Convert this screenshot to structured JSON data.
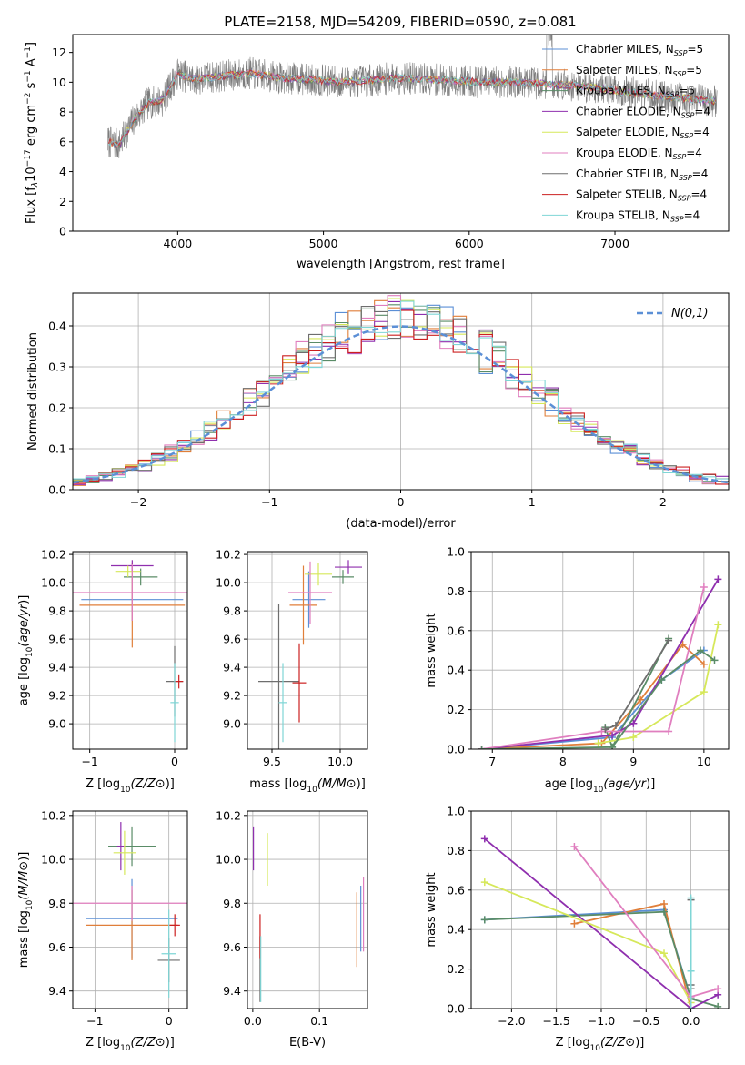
{
  "title": "PLATE=2158, MJD=54209, FIBERID=0590, z=0.081",
  "colors": {
    "series": [
      "#5b8fd6",
      "#e07f3a",
      "#5a8c67",
      "#8f2fae",
      "#d6e85a",
      "#e07fbf",
      "#6e6e6e",
      "#cc2020",
      "#7fd6d6"
    ],
    "grid": "#b0b0b0"
  },
  "chart_data": [
    {
      "id": "spectrum",
      "type": "line",
      "xlabel": "wavelength [Angstrom, rest frame]",
      "ylabel_parts": [
        "Flux [f",
        "λ",
        "10",
        "−17",
        " erg cm",
        "−2",
        " s",
        "−1",
        " A",
        "−1",
        "]"
      ],
      "xlim": [
        3280,
        7780
      ],
      "ylim": [
        0,
        13.2
      ],
      "xticks": [
        4000,
        5000,
        6000,
        7000,
        8000
      ],
      "yticks": [
        0,
        2,
        4,
        6,
        8,
        10,
        12
      ],
      "legend_position": "upper right",
      "legend": [
        {
          "name": "Chabrier MILES",
          "sub": "SSP",
          "n": "5"
        },
        {
          "name": "Salpeter MILES",
          "sub": "SSP",
          "n": "5"
        },
        {
          "name": "Kroupa MILES",
          "sub": "SSP",
          "n": "5"
        },
        {
          "name": "Chabrier ELODIE",
          "sub": "SSP",
          "n": "4"
        },
        {
          "name": "Salpeter ELODIE",
          "sub": "SSP",
          "n": "4"
        },
        {
          "name": "Kroupa ELODIE",
          "sub": "SSP",
          "n": "4"
        },
        {
          "name": "Chabrier STELIB",
          "sub": "SSP",
          "n": "4"
        },
        {
          "name": "Salpeter STELIB",
          "sub": "SSP",
          "n": "4"
        },
        {
          "name": "Kroupa STELIB",
          "sub": "SSP",
          "n": "4"
        }
      ],
      "data_trend": {
        "x": [
          3520,
          3600,
          3700,
          3800,
          3900,
          4000,
          4100,
          4300,
          4500,
          4700,
          4900,
          5100,
          5300,
          5500,
          5700,
          5900,
          6100,
          6300,
          6500,
          6700,
          6900,
          7100,
          7300,
          7500,
          7700
        ],
        "y": [
          6.0,
          5.8,
          7.5,
          8.6,
          8.8,
          10.6,
          10.2,
          10.4,
          10.6,
          10.3,
          10.2,
          10.0,
          10.1,
          10.3,
          10.2,
          10.1,
          10.0,
          10.0,
          9.9,
          9.8,
          9.6,
          9.3,
          9.1,
          8.9,
          8.7
        ]
      }
    },
    {
      "id": "residuals",
      "type": "histogram",
      "xlabel": "(data-model)/error",
      "ylabel": "Normed distribution",
      "xlim": [
        -2.5,
        2.5
      ],
      "ylim": [
        0,
        0.48
      ],
      "xticks": [
        -2,
        -1,
        0,
        1,
        2
      ],
      "yticks": [
        0.0,
        0.1,
        0.2,
        0.3,
        0.4
      ],
      "bin_width": 0.1,
      "legend_label": "N(0,1)",
      "legend_position": "upper right",
      "reference_curve": {
        "type": "gaussian",
        "mean": 0,
        "sigma": 1
      }
    },
    {
      "id": "age-vs-Z",
      "type": "errorbar",
      "xlabel": "Z [log10(Z/Z⊙)]",
      "ylabel": "age  [log10(age/yr)]",
      "xlim": [
        -1.2,
        0.15
      ],
      "ylim": [
        8.82,
        10.22
      ],
      "xticks": [
        -1,
        0
      ],
      "yticks": [
        9.0,
        9.2,
        9.4,
        9.6,
        9.8,
        10.0,
        10.2
      ],
      "points": [
        {
          "x": -0.5,
          "y": 9.88,
          "xerr": 0.6,
          "yerr": 0.15,
          "series": 0
        },
        {
          "x": -0.5,
          "y": 9.84,
          "xerr": 0.62,
          "yerr": 0.3,
          "series": 1
        },
        {
          "x": -0.4,
          "y": 10.04,
          "xerr": 0.2,
          "yerr": 0.06,
          "series": 2
        },
        {
          "x": -0.5,
          "y": 10.12,
          "xerr": 0.25,
          "yerr": 0.04,
          "series": 3
        },
        {
          "x": -0.55,
          "y": 10.08,
          "xerr": 0.15,
          "yerr": 0.04,
          "series": 4
        },
        {
          "x": -0.5,
          "y": 9.93,
          "xerr": 0.78,
          "yerr": 0.2,
          "series": 5
        },
        {
          "x": 0.0,
          "y": 9.3,
          "xerr": 0.1,
          "yerr": 0.25,
          "series": 6
        },
        {
          "x": 0.05,
          "y": 9.3,
          "xerr": 0.05,
          "yerr": 0.05,
          "series": 7
        },
        {
          "x": 0.0,
          "y": 9.15,
          "xerr": 0.05,
          "yerr": 0.28,
          "series": 8
        }
      ]
    },
    {
      "id": "age-vs-mass",
      "type": "errorbar",
      "xlabel": "mass [log10(M/M⊙)]",
      "ylabel": "",
      "xlim": [
        9.32,
        10.2
      ],
      "ylim": [
        8.82,
        10.22
      ],
      "xticks": [
        9.5,
        10.0
      ],
      "yticks": [
        9.0,
        9.2,
        9.4,
        9.6,
        9.8,
        10.0,
        10.2
      ],
      "points": [
        {
          "x": 9.77,
          "y": 9.88,
          "xerr": 0.12,
          "yerr": 0.2,
          "series": 0
        },
        {
          "x": 9.73,
          "y": 9.84,
          "xerr": 0.1,
          "yerr": 0.28,
          "series": 1
        },
        {
          "x": 10.02,
          "y": 10.04,
          "xerr": 0.08,
          "yerr": 0.05,
          "series": 2
        },
        {
          "x": 10.06,
          "y": 10.11,
          "xerr": 0.1,
          "yerr": 0.05,
          "series": 3
        },
        {
          "x": 9.84,
          "y": 10.06,
          "xerr": 0.1,
          "yerr": 0.08,
          "series": 4
        },
        {
          "x": 9.78,
          "y": 9.93,
          "xerr": 0.16,
          "yerr": 0.22,
          "series": 5
        },
        {
          "x": 9.55,
          "y": 9.3,
          "xerr": 0.15,
          "yerr": 0.55,
          "series": 6
        },
        {
          "x": 9.7,
          "y": 9.29,
          "xerr": 0.05,
          "yerr": 0.28,
          "series": 7
        },
        {
          "x": 9.58,
          "y": 9.15,
          "xerr": 0.03,
          "yerr": 0.28,
          "series": 8
        }
      ]
    },
    {
      "id": "mass-weight-vs-age",
      "type": "line",
      "xlabel": "age  [log10(age/yr)]",
      "ylabel": "mass weight",
      "xlim": [
        6.7,
        10.35
      ],
      "ylim": [
        0,
        1
      ],
      "xticks": [
        7,
        8,
        9,
        10
      ],
      "yticks": [
        0.0,
        0.2,
        0.4,
        0.6,
        0.8,
        1.0
      ],
      "series": [
        {
          "x": [
            6.85,
            8.7,
            9.4,
            10.0
          ],
          "y": [
            0.0,
            0.06,
            0.35,
            0.5
          ],
          "series": 0
        },
        {
          "x": [
            6.85,
            8.55,
            9.1,
            9.7,
            10.0
          ],
          "y": [
            0.0,
            0.03,
            0.25,
            0.53,
            0.43
          ],
          "series": 1
        },
        {
          "x": [
            8.6,
            8.7,
            9.5
          ],
          "y": [
            0.11,
            0.01,
            0.56
          ],
          "series": 2
        },
        {
          "x": [
            6.85,
            8.7,
            9.0,
            10.2
          ],
          "y": [
            0.0,
            0.07,
            0.13,
            0.86
          ],
          "series": 3
        },
        {
          "x": [
            8.5,
            9.0,
            10.0,
            10.2
          ],
          "y": [
            0.03,
            0.06,
            0.29,
            0.63
          ],
          "series": 4
        },
        {
          "x": [
            6.85,
            8.55,
            9.5,
            10.0
          ],
          "y": [
            0.0,
            0.09,
            0.09,
            0.82
          ],
          "series": 5
        },
        {
          "x": [
            8.6,
            8.75,
            9.5
          ],
          "y": [
            0.1,
            0.12,
            0.55
          ],
          "series": 6
        },
        {
          "x": [
            6.85,
            8.7,
            9.4,
            9.95,
            10.15
          ],
          "y": [
            0.0,
            0.01,
            0.35,
            0.5,
            0.45
          ],
          "series": 2
        }
      ]
    },
    {
      "id": "mass-vs-Z",
      "type": "errorbar",
      "xlabel": "Z [log10(Z/Z⊙)]",
      "ylabel": "mass [log10(M/M⊙)]",
      "xlim": [
        -1.3,
        0.25
      ],
      "ylim": [
        9.32,
        10.22
      ],
      "xticks": [
        -1,
        0
      ],
      "yticks": [
        9.4,
        9.6,
        9.8,
        10.0,
        10.2
      ],
      "points": [
        {
          "x": -0.5,
          "y": 9.73,
          "xerr": 0.62,
          "yerr": 0.18,
          "series": 0
        },
        {
          "x": -0.5,
          "y": 9.7,
          "xerr": 0.62,
          "yerr": 0.16,
          "series": 1
        },
        {
          "x": -0.5,
          "y": 10.06,
          "xerr": 0.32,
          "yerr": 0.09,
          "series": 2
        },
        {
          "x": -0.65,
          "y": 10.06,
          "xerr": 0.05,
          "yerr": 0.11,
          "series": 3
        },
        {
          "x": -0.6,
          "y": 10.03,
          "xerr": 0.15,
          "yerr": 0.1,
          "series": 4
        },
        {
          "x": -0.5,
          "y": 9.8,
          "xerr": 0.85,
          "yerr": 0.08,
          "series": 5
        },
        {
          "x": 0.0,
          "y": 9.54,
          "xerr": 0.15,
          "yerr": 0.1,
          "series": 6
        },
        {
          "x": 0.08,
          "y": 9.7,
          "xerr": 0.07,
          "yerr": 0.05,
          "series": 7
        },
        {
          "x": 0.0,
          "y": 9.57,
          "xerr": 0.1,
          "yerr": 0.2,
          "series": 8
        }
      ]
    },
    {
      "id": "mass-vs-ebv",
      "type": "errorbar",
      "xlabel": "E(B-V)",
      "ylabel": "",
      "xlim": [
        -0.008,
        0.172
      ],
      "ylim": [
        9.32,
        10.22
      ],
      "xticks": [
        0.0,
        0.1
      ],
      "yticks": [
        9.4,
        9.6,
        9.8,
        10.0,
        10.2
      ],
      "points": [
        {
          "x": 0.162,
          "y": 9.73,
          "xerr": 0,
          "yerr": 0.15,
          "series": 0
        },
        {
          "x": 0.156,
          "y": 9.68,
          "xerr": 0,
          "yerr": 0.17,
          "series": 1
        },
        {
          "x": 0.001,
          "y": 10.05,
          "xerr": 0,
          "yerr": 0.1,
          "series": 3
        },
        {
          "x": 0.022,
          "y": 10.0,
          "xerr": 0,
          "yerr": 0.12,
          "series": 4
        },
        {
          "x": 0.166,
          "y": 9.75,
          "xerr": 0,
          "yerr": 0.17,
          "series": 5
        },
        {
          "x": 0.011,
          "y": 9.5,
          "xerr": 0,
          "yerr": 0.15,
          "series": 6
        },
        {
          "x": 0.011,
          "y": 9.65,
          "xerr": 0,
          "yerr": 0.1,
          "series": 7
        },
        {
          "x": 0.012,
          "y": 9.5,
          "xerr": 0,
          "yerr": 0.15,
          "series": 8
        }
      ]
    },
    {
      "id": "mass-weight-vs-Z",
      "type": "line",
      "xlabel": "Z [log10(Z/Z⊙)]",
      "ylabel": "mass weight",
      "xlim": [
        -2.45,
        0.42
      ],
      "ylim": [
        0,
        1
      ],
      "xticks": [
        -2.0,
        -1.5,
        -1.0,
        -0.5,
        0.0
      ],
      "yticks": [
        0.0,
        0.2,
        0.4,
        0.6,
        0.8,
        1.0
      ],
      "series": [
        {
          "x": [
            -2.3,
            -0.3,
            0.0
          ],
          "y": [
            0.45,
            0.5,
            0.05
          ],
          "series": 0
        },
        {
          "x": [
            -1.3,
            -0.3,
            0.0
          ],
          "y": [
            0.43,
            0.53,
            0.0
          ],
          "series": 1
        },
        {
          "x": [
            -2.3,
            -0.3,
            0.0,
            0.3
          ],
          "y": [
            0.45,
            0.49,
            0.05,
            0.01
          ],
          "series": 2
        },
        {
          "x": [
            -2.3,
            0.0,
            0.3
          ],
          "y": [
            0.86,
            0.0,
            0.07
          ],
          "series": 3
        },
        {
          "x": [
            -2.3,
            -0.3,
            0.0
          ],
          "y": [
            0.64,
            0.28,
            0.03
          ],
          "series": 4
        },
        {
          "x": [
            -1.3,
            0.0,
            0.3
          ],
          "y": [
            0.82,
            0.06,
            0.1
          ],
          "series": 5
        },
        {
          "x": [
            0.0,
            0.0,
            0.0
          ],
          "y": [
            0.55,
            0.12,
            0.1
          ],
          "series": 6
        },
        {
          "x": [
            0.0,
            0.0,
            0.0
          ],
          "y": [
            0.56,
            0.19,
            0.0
          ],
          "series": 8
        }
      ]
    }
  ]
}
